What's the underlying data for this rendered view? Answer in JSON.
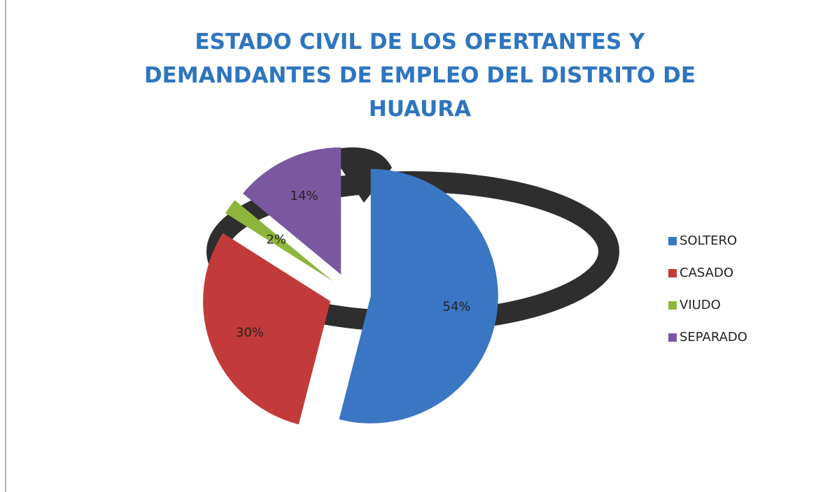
{
  "chart_data": {
    "type": "pie",
    "title": "ESTADO CIVIL  DE LOS OFERTANTES Y DEMANDANTES DE EMPLEO DEL DISTRITO DE HUAURA",
    "categories": [
      "SOLTERO",
      "CASADO",
      "VIUDO",
      "SEPARADO"
    ],
    "values": [
      54,
      30,
      2,
      14
    ],
    "value_labels": [
      "54%",
      "30%",
      "2%",
      "14%"
    ],
    "colors": [
      "#3b76c4",
      "#c23b3a",
      "#8fb63c",
      "#7a58a0"
    ],
    "legend": "right"
  }
}
